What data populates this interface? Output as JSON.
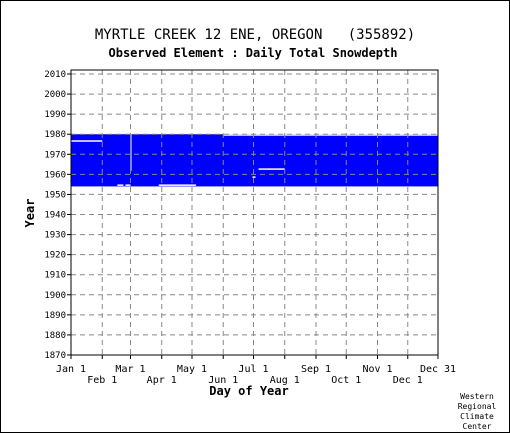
{
  "chart_data": {
    "type": "heatmap",
    "title": "MYRTLE CREEK 12 ENE, OREGON   (355892)",
    "subtitle": "Observed Element : Daily Total Snowdepth",
    "xlabel": "Day of Year",
    "ylabel": "Year",
    "x_ticks_row1": [
      "Jan 1",
      "Mar 1",
      "May 1",
      "Jul 1",
      "Sep 1",
      "Nov 1",
      "Dec 31"
    ],
    "x_ticks_row2": [
      "Feb 1",
      "Apr 1",
      "Jun 1",
      "Aug 1",
      "Oct 1",
      "Dec 1"
    ],
    "x_tick_days_row1": [
      1,
      60,
      121,
      182,
      244,
      305,
      365
    ],
    "x_tick_days_row2": [
      32,
      91,
      152,
      213,
      274,
      335
    ],
    "xlim": [
      1,
      365
    ],
    "ylim": [
      1870,
      2012
    ],
    "y_ticks": [
      1870,
      1880,
      1890,
      1900,
      1910,
      1920,
      1930,
      1940,
      1950,
      1960,
      1970,
      1980,
      1990,
      2000,
      2010
    ],
    "grid": true,
    "data_color": "#0000ff",
    "data_coverage": [
      {
        "year_start": 1954,
        "year_end": 1980,
        "day_start": 1,
        "day_end": 365
      }
    ],
    "gaps": [
      {
        "year_start": 1976,
        "year_end": 1977,
        "day_start": 1,
        "day_end": 32
      },
      {
        "year_start": 1954,
        "year_end": 1955,
        "day_start": 88,
        "day_end": 125
      },
      {
        "year_start": 1954,
        "year_end": 1955,
        "day_start": 47,
        "day_end": 53
      },
      {
        "year_start": 1954,
        "year_end": 1955,
        "day_start": 55,
        "day_end": 60
      },
      {
        "year_start": 1962,
        "year_end": 1963,
        "day_start": 187,
        "day_end": 213
      },
      {
        "year_start": 1958,
        "year_end": 1959,
        "day_start": 181,
        "day_end": 184
      },
      {
        "year_start": 1954,
        "year_end": 1980,
        "day_start": 60,
        "day_end": 61
      },
      {
        "year_start": 1979,
        "year_end": 1980,
        "day_start": 152,
        "day_end": 365
      }
    ],
    "credit": [
      "Western",
      "Regional",
      "Climate",
      "Center"
    ]
  }
}
